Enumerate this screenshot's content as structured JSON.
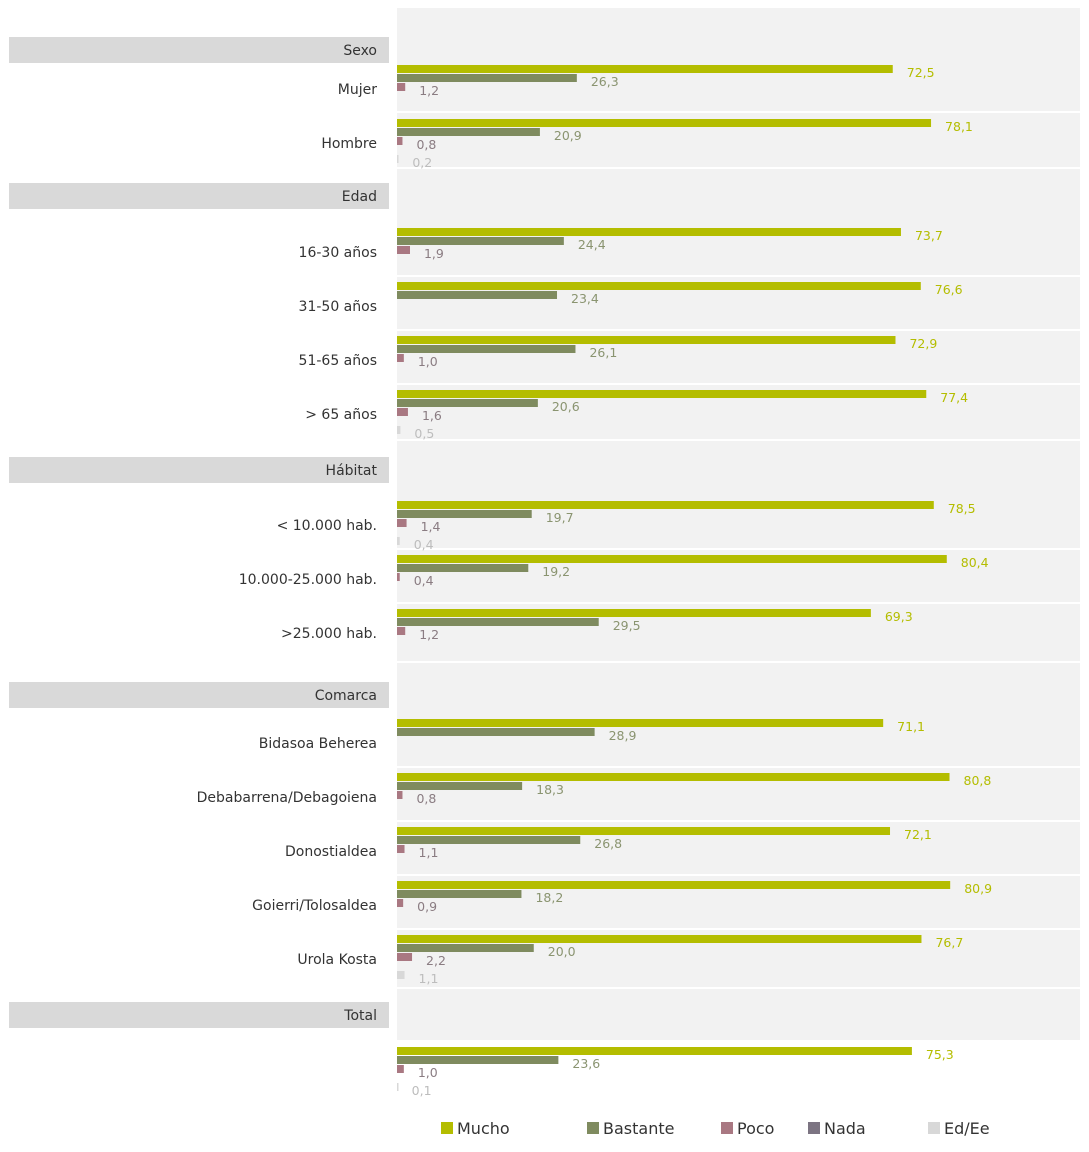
{
  "chart_data": {
    "type": "bar",
    "orientation": "horizontal",
    "colors": {
      "Mucho": "#b4bd00",
      "Bastante": "#7f8b5f",
      "Poco": "#a97882",
      "Nada": "#7c7482",
      "Ed/Ee": "#d8d8d8",
      "section_band": "#d9d9d9",
      "plot_background": "#f2f2f2",
      "label_text": "#333333"
    },
    "series_names": [
      "Mucho",
      "Bastante",
      "Poco",
      "Nada",
      "Ed/Ee"
    ],
    "legend": {
      "position": "bottom",
      "items": [
        {
          "label": "Mucho",
          "color": "#b4bd00"
        },
        {
          "label": "Bastante",
          "color": "#7f8b5f"
        },
        {
          "label": "Poco",
          "color": "#a97882"
        },
        {
          "label": "Nada",
          "color": "#7c7482"
        },
        {
          "label": "Ed/Ee",
          "color": "#d8d8d8"
        }
      ]
    },
    "xlim": [
      0,
      100
    ],
    "sections": [
      {
        "name": "Sexo",
        "rows": [
          {
            "label": "Mujer",
            "values": [
              {
                "series": "Mucho",
                "value": 72.5,
                "text": "72,5"
              },
              {
                "series": "Bastante",
                "value": 26.3,
                "text": "26,3"
              },
              {
                "series": "Poco",
                "value": 1.2,
                "text": "1,2"
              }
            ]
          },
          {
            "label": "Hombre",
            "values": [
              {
                "series": "Mucho",
                "value": 78.1,
                "text": "78,1"
              },
              {
                "series": "Bastante",
                "value": 20.9,
                "text": "20,9"
              },
              {
                "series": "Poco",
                "value": 0.8,
                "text": "0,8"
              },
              {
                "series": "Ed/Ee",
                "value": 0.2,
                "text": "0,2"
              }
            ]
          }
        ]
      },
      {
        "name": "Edad",
        "rows": [
          {
            "label": "16-30 años",
            "values": [
              {
                "series": "Mucho",
                "value": 73.7,
                "text": "73,7"
              },
              {
                "series": "Bastante",
                "value": 24.4,
                "text": "24,4"
              },
              {
                "series": "Poco",
                "value": 1.9,
                "text": "1,9"
              }
            ]
          },
          {
            "label": "31-50 años",
            "values": [
              {
                "series": "Mucho",
                "value": 76.6,
                "text": "76,6"
              },
              {
                "series": "Bastante",
                "value": 23.4,
                "text": "23,4"
              }
            ]
          },
          {
            "label": "51-65 años",
            "values": [
              {
                "series": "Mucho",
                "value": 72.9,
                "text": "72,9"
              },
              {
                "series": "Bastante",
                "value": 26.1,
                "text": "26,1"
              },
              {
                "series": "Poco",
                "value": 1.0,
                "text": "1,0"
              }
            ]
          },
          {
            "label": "> 65 años",
            "values": [
              {
                "series": "Mucho",
                "value": 77.4,
                "text": "77,4"
              },
              {
                "series": "Bastante",
                "value": 20.6,
                "text": "20,6"
              },
              {
                "series": "Poco",
                "value": 1.6,
                "text": "1,6"
              },
              {
                "series": "Ed/Ee",
                "value": 0.5,
                "text": "0,5"
              }
            ]
          }
        ]
      },
      {
        "name": "Hábitat",
        "rows": [
          {
            "label": "< 10.000 hab.",
            "values": [
              {
                "series": "Mucho",
                "value": 78.5,
                "text": "78,5"
              },
              {
                "series": "Bastante",
                "value": 19.7,
                "text": "19,7"
              },
              {
                "series": "Poco",
                "value": 1.4,
                "text": "1,4"
              },
              {
                "series": "Ed/Ee",
                "value": 0.4,
                "text": "0,4"
              }
            ]
          },
          {
            "label": "10.000-25.000 hab.",
            "values": [
              {
                "series": "Mucho",
                "value": 80.4,
                "text": "80,4"
              },
              {
                "series": "Bastante",
                "value": 19.2,
                "text": "19,2"
              },
              {
                "series": "Poco",
                "value": 0.4,
                "text": "0,4"
              }
            ]
          },
          {
            "label": ">25.000 hab.",
            "values": [
              {
                "series": "Mucho",
                "value": 69.3,
                "text": "69,3"
              },
              {
                "series": "Bastante",
                "value": 29.5,
                "text": "29,5"
              },
              {
                "series": "Poco",
                "value": 1.2,
                "text": "1,2"
              }
            ]
          }
        ]
      },
      {
        "name": "Comarca",
        "rows": [
          {
            "label": "Bidasoa Beherea",
            "values": [
              {
                "series": "Mucho",
                "value": 71.1,
                "text": "71,1"
              },
              {
                "series": "Bastante",
                "value": 28.9,
                "text": "28,9"
              }
            ]
          },
          {
            "label": "Debabarrena/Debagoiena",
            "values": [
              {
                "series": "Mucho",
                "value": 80.8,
                "text": "80,8"
              },
              {
                "series": "Bastante",
                "value": 18.3,
                "text": "18,3"
              },
              {
                "series": "Poco",
                "value": 0.8,
                "text": "0,8"
              }
            ]
          },
          {
            "label": "Donostialdea",
            "values": [
              {
                "series": "Mucho",
                "value": 72.1,
                "text": "72,1"
              },
              {
                "series": "Bastante",
                "value": 26.8,
                "text": "26,8"
              },
              {
                "series": "Poco",
                "value": 1.1,
                "text": "1,1"
              }
            ]
          },
          {
            "label": "Goierri/Tolosaldea",
            "values": [
              {
                "series": "Mucho",
                "value": 80.9,
                "text": "80,9"
              },
              {
                "series": "Bastante",
                "value": 18.2,
                "text": "18,2"
              },
              {
                "series": "Poco",
                "value": 0.9,
                "text": "0,9"
              }
            ]
          },
          {
            "label": "Urola Kosta",
            "values": [
              {
                "series": "Mucho",
                "value": 76.7,
                "text": "76,7"
              },
              {
                "series": "Bastante",
                "value": 20.0,
                "text": "20,0"
              },
              {
                "series": "Poco",
                "value": 2.2,
                "text": "2,2"
              },
              {
                "series": "Ed/Ee",
                "value": 1.1,
                "text": "1,1"
              }
            ]
          }
        ]
      },
      {
        "name": "Total",
        "rows": [
          {
            "label": "",
            "values": [
              {
                "series": "Mucho",
                "value": 75.3,
                "text": "75,3"
              },
              {
                "series": "Bastante",
                "value": 23.6,
                "text": "23,6"
              },
              {
                "series": "Poco",
                "value": 1.0,
                "text": "1,0"
              },
              {
                "series": "Ed/Ee",
                "value": 0.1,
                "text": "0,1"
              }
            ]
          }
        ]
      }
    ]
  }
}
